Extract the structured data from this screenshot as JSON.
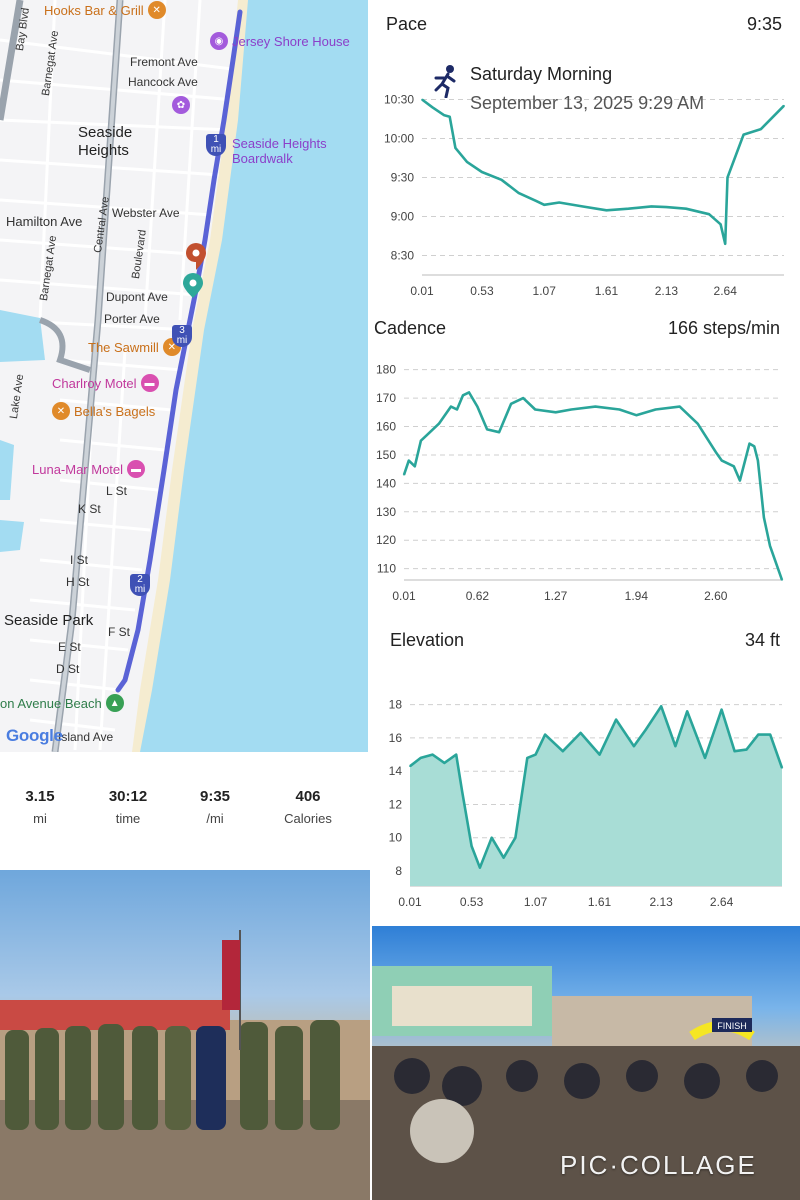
{
  "map": {
    "labels": {
      "bay_blvd": "Bay Blvd",
      "barnegat_ave_1": "Barnegat Ave",
      "fremont_ave": "Fremont Ave",
      "hancock_ave": "Hancock Ave",
      "seaside_heights": "Seaside\nHeights",
      "webster_ave": "Webster Ave",
      "hamilton_ave": "Hamilton Ave",
      "central_ave": "Central Ave",
      "barnegat_ave_2": "Barnegat Ave",
      "boulevard": "Boulevard",
      "dupont_ave": "Dupont Ave",
      "porter_ave": "Porter Ave",
      "lake_ave": "Lake Ave",
      "l_st": "L St",
      "k_st": "K St",
      "i_st": "I St",
      "h_st": "H St",
      "seaside_park": "Seaside Park",
      "f_st": "F St",
      "e_st": "E St",
      "d_st": "D St",
      "island_ave": "Island Ave"
    },
    "pois": {
      "hooks_bar": "Hooks Bar & Grill",
      "jersey_shore_house": "Jersey Shore House",
      "seaside_boardwalk": "Seaside Heights\nBoardwalk",
      "the_sawmill": "The Sawmill",
      "charlroy_motel": "Charlroy Motel",
      "bellas_bagels": "Bella's Bagels",
      "luna_mar_motel": "Luna-Mar Motel",
      "avenue_beach": "on Avenue Beach"
    },
    "mile_markers": {
      "m1": "1\nmi",
      "m2": "2\nmi",
      "m3": "3\nmi"
    },
    "attribution": "Google",
    "colors": {
      "water": "#a3dcf2",
      "route": "#5a63d6",
      "start": "#2ea89a",
      "end": "#c2502f",
      "beach": "#f5ecd0"
    }
  },
  "stats": [
    {
      "value": "3.15",
      "unit": "mi"
    },
    {
      "value": "30:12",
      "unit": "time"
    },
    {
      "value": "9:35",
      "unit": "/mi"
    },
    {
      "value": "406",
      "unit": "Calories"
    }
  ],
  "workout": {
    "title": "Saturday Morning",
    "datetime": "September 13, 2025 9:29 AM",
    "icon": "running-person-icon"
  },
  "chart_data": [
    {
      "type": "line",
      "title": "Pace",
      "headline_value": "9:35",
      "color": "#2aa59a",
      "y_inverted": true,
      "y_ticks": [
        "10:30",
        "10:00",
        "9:30",
        "9:00",
        "8:30"
      ],
      "x_ticks": [
        "0.01",
        "0.53",
        "1.07",
        "1.61",
        "2.13",
        "2.64"
      ],
      "ylim_min_per_mi": [
        8.25,
        10.75
      ],
      "x": [
        0.01,
        0.1,
        0.2,
        0.25,
        0.3,
        0.4,
        0.53,
        0.7,
        0.85,
        1.0,
        1.07,
        1.2,
        1.4,
        1.61,
        1.8,
        2.0,
        2.13,
        2.3,
        2.5,
        2.6,
        2.64,
        2.66,
        2.8,
        2.95,
        3.15
      ],
      "y": [
        10.5,
        10.4,
        10.3,
        10.28,
        9.88,
        9.7,
        9.57,
        9.47,
        9.3,
        9.2,
        9.15,
        9.18,
        9.13,
        9.08,
        9.1,
        9.13,
        9.12,
        9.1,
        9.03,
        8.9,
        8.65,
        9.5,
        10.05,
        10.12,
        10.42
      ],
      "xlim": [
        0.01,
        3.15
      ]
    },
    {
      "type": "line",
      "title": "Cadence",
      "headline_value": "166 steps/min",
      "color": "#2aa59a",
      "y_ticks": [
        180,
        170,
        160,
        150,
        140,
        130,
        120,
        110
      ],
      "x_ticks": [
        "0.01",
        "0.62",
        "1.27",
        "1.94",
        "2.60"
      ],
      "ylim": [
        106,
        182
      ],
      "x": [
        0.01,
        0.05,
        0.1,
        0.15,
        0.2,
        0.3,
        0.4,
        0.45,
        0.5,
        0.55,
        0.62,
        0.7,
        0.8,
        0.9,
        1.0,
        1.1,
        1.27,
        1.4,
        1.6,
        1.8,
        1.94,
        2.1,
        2.3,
        2.45,
        2.6,
        2.65,
        2.75,
        2.8,
        2.88,
        2.92,
        2.95,
        3.0,
        3.05,
        3.1,
        3.15
      ],
      "y": [
        143,
        148,
        146,
        155,
        157,
        161,
        167,
        166,
        171,
        172,
        167,
        159,
        158,
        168,
        170,
        166,
        165,
        166,
        167,
        166,
        164,
        166,
        167,
        161,
        151,
        148,
        146,
        141,
        154,
        153,
        148,
        128,
        118,
        112,
        106
      ],
      "xlim": [
        0.01,
        3.15
      ]
    },
    {
      "type": "area",
      "title": "Elevation",
      "headline_value": "34 ft",
      "color": "#2aa59a",
      "fill": "#a8ddd6",
      "y_ticks": [
        18,
        16,
        14,
        12,
        10,
        8
      ],
      "x_ticks": [
        "0.01",
        "0.53",
        "1.07",
        "1.61",
        "2.13",
        "2.64"
      ],
      "ylim": [
        7.1,
        19
      ],
      "x": [
        0.01,
        0.1,
        0.2,
        0.3,
        0.4,
        0.45,
        0.53,
        0.6,
        0.7,
        0.8,
        0.9,
        1.0,
        1.07,
        1.15,
        1.3,
        1.45,
        1.61,
        1.75,
        1.9,
        2.0,
        2.13,
        2.25,
        2.35,
        2.5,
        2.64,
        2.75,
        2.85,
        2.95,
        3.05,
        3.15
      ],
      "y": [
        14.3,
        14.8,
        15.0,
        14.5,
        15.0,
        12.8,
        9.5,
        8.2,
        10.0,
        8.8,
        10.0,
        14.8,
        15.0,
        16.2,
        15.2,
        16.3,
        15.0,
        17.1,
        15.5,
        16.5,
        17.9,
        15.5,
        17.6,
        14.8,
        17.7,
        15.2,
        15.3,
        16.2,
        16.2,
        14.2
      ],
      "xlim": [
        0.01,
        3.15
      ]
    }
  ],
  "photos": {
    "watermark": "PIC·COLLAGE",
    "finish_banner": "FINISH"
  }
}
